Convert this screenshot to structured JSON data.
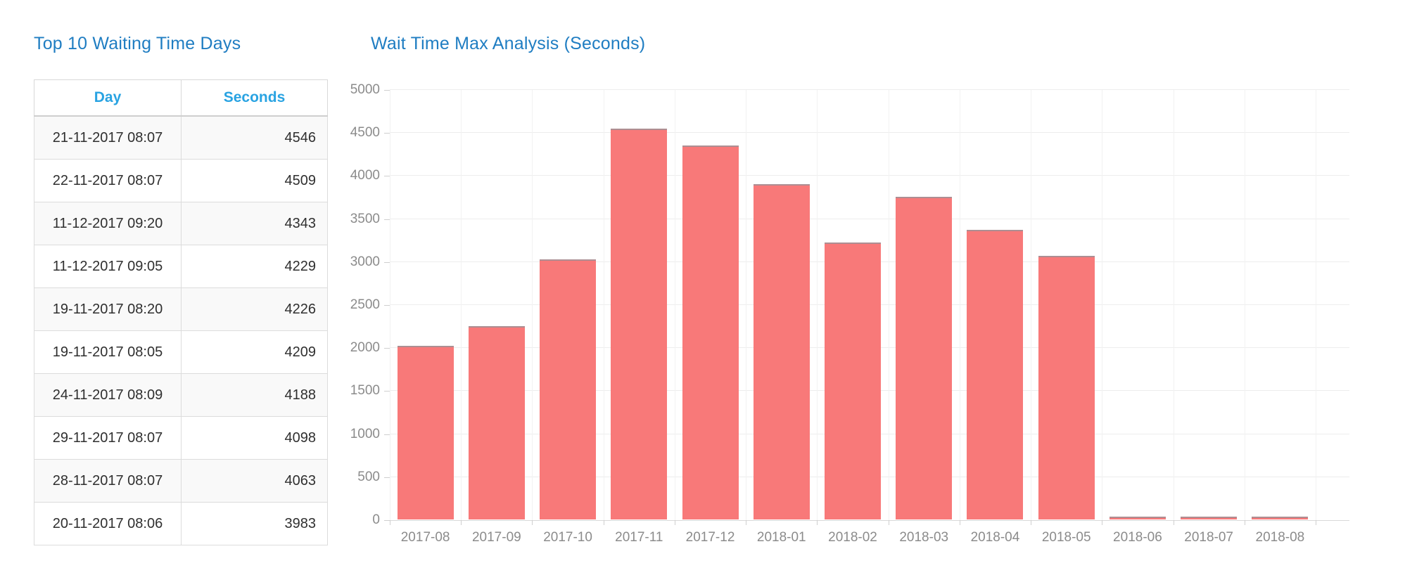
{
  "table": {
    "title": "Top 10 Waiting Time Days",
    "columns": [
      "Day",
      "Seconds"
    ],
    "rows": [
      {
        "day": "21-11-2017 08:07",
        "seconds": "4546"
      },
      {
        "day": "22-11-2017 08:07",
        "seconds": "4509"
      },
      {
        "day": "11-12-2017 09:20",
        "seconds": "4343"
      },
      {
        "day": "11-12-2017 09:05",
        "seconds": "4229"
      },
      {
        "day": "19-11-2017 08:20",
        "seconds": "4226"
      },
      {
        "day": "19-11-2017 08:05",
        "seconds": "4209"
      },
      {
        "day": "24-11-2017 08:09",
        "seconds": "4188"
      },
      {
        "day": "29-11-2017 08:07",
        "seconds": "4098"
      },
      {
        "day": "28-11-2017 08:07",
        "seconds": "4063"
      },
      {
        "day": "20-11-2017 08:06",
        "seconds": "3983"
      }
    ]
  },
  "chart_data": {
    "type": "bar",
    "title": "Wait Time Max Analysis (Seconds)",
    "categories": [
      "2017-08",
      "2017-09",
      "2017-10",
      "2017-11",
      "2017-12",
      "2018-01",
      "2018-02",
      "2018-03",
      "2018-04",
      "2018-05",
      "2018-06",
      "2018-07",
      "2018-08"
    ],
    "values": [
      2020,
      2250,
      3020,
      4546,
      4343,
      3900,
      3220,
      3750,
      3370,
      3060,
      30,
      30,
      30
    ],
    "xlabel": "",
    "ylabel": "",
    "ylim": [
      0,
      5000
    ],
    "yticks": [
      0,
      500,
      1000,
      1500,
      2000,
      2500,
      3000,
      3500,
      4000,
      4500,
      5000
    ],
    "grid": true,
    "legend": "none"
  },
  "colors": {
    "title_blue": "#1f7dc2",
    "table_header_blue": "#29a3e2",
    "bar_fill": "#f87979",
    "bar_border": "#ad8e92",
    "axis_text": "#8b8b8b",
    "gridline": "#ededed",
    "row_stripe": "#f9f9f9"
  }
}
